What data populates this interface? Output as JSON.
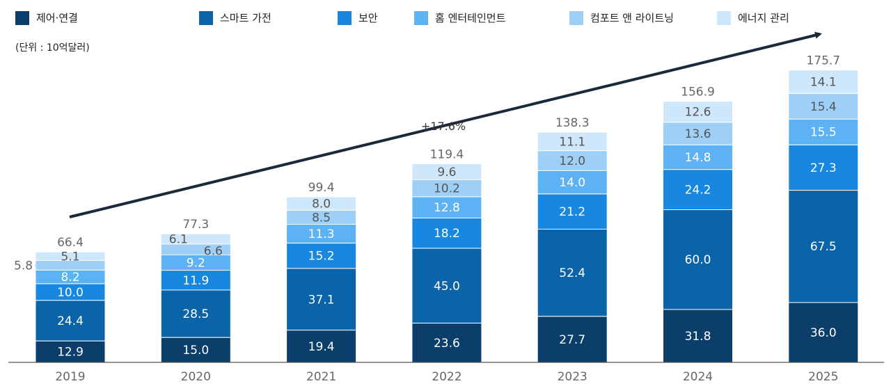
{
  "chart_data": {
    "type": "bar",
    "stacked": true,
    "unit_label": "(단위 : 10억달러)",
    "categories": [
      "2019",
      "2020",
      "2021",
      "2022",
      "2023",
      "2024",
      "2025"
    ],
    "series": [
      {
        "name": "제어·연결",
        "color": "#0b3e6a",
        "label_color": "#ffffff",
        "values": [
          12.9,
          15.0,
          19.4,
          23.6,
          27.7,
          31.8,
          36.0
        ]
      },
      {
        "name": "스마트 가전",
        "color": "#0b63a8",
        "label_color": "#ffffff",
        "values": [
          24.4,
          28.5,
          37.1,
          45.0,
          52.4,
          60.0,
          67.5
        ]
      },
      {
        "name": "보안",
        "color": "#1787e0",
        "label_color": "#ffffff",
        "values": [
          10.0,
          11.9,
          15.2,
          18.2,
          21.2,
          24.2,
          27.3
        ]
      },
      {
        "name": "홈 엔터테인먼트",
        "color": "#5cb2f2",
        "label_color": "#ffffff",
        "values": [
          8.2,
          9.2,
          11.3,
          12.8,
          14.0,
          14.8,
          15.5
        ]
      },
      {
        "name": "컴포트 앤 라이트닝",
        "color": "#9dcff7",
        "label_color": "#555555",
        "values": [
          5.8,
          6.6,
          8.5,
          10.2,
          12.0,
          13.6,
          15.4
        ]
      },
      {
        "name": "에너지 관리",
        "color": "#cfe7fb",
        "label_color": "#555555",
        "values": [
          5.1,
          6.1,
          8.0,
          9.6,
          11.1,
          12.6,
          14.1
        ]
      }
    ],
    "totals": [
      "66.4",
      "77.3",
      "99.4",
      "119.4",
      "138.3",
      "156.9",
      "175.7"
    ],
    "ylim": [
      0,
      180
    ],
    "trend_annotation": "+17.6%",
    "legend_position": "top"
  }
}
